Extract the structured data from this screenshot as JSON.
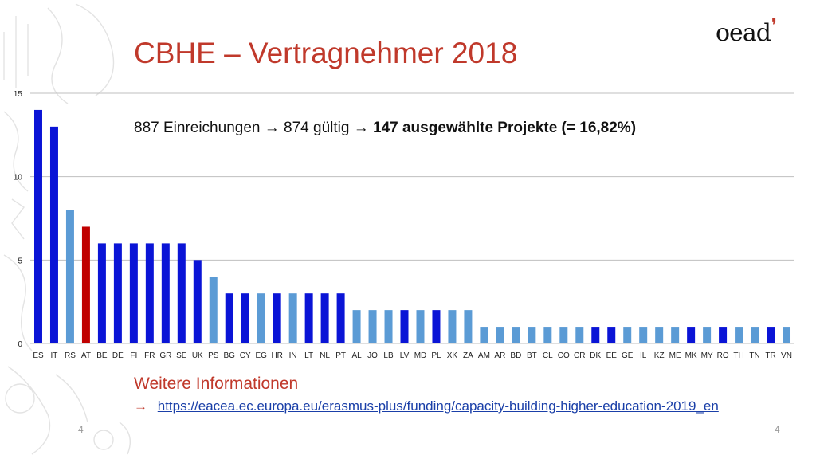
{
  "slide": {
    "title": "CBHE – Vertragnehmer 2018",
    "logo_text": "oead",
    "annotation_part1": "887 Einreichungen",
    "annotation_part2": "874 gültig",
    "annotation_bold": "147 ausgewählte Projekte (= 16,82%)",
    "more_info_title": "Weitere Informationen",
    "link_text": "https://eacea.ec.europa.eu/erasmus-plus/funding/capacity-building-higher-education-2019_en",
    "page_number_left": "4",
    "page_number_right": "4"
  },
  "colors": {
    "title": "#c0392b",
    "dark_blue": "#0a14d6",
    "light_blue": "#5b9bd5",
    "red": "#c00000",
    "gridline": "#bfbfbf"
  },
  "chart_data": {
    "type": "bar",
    "categories": [
      "ES",
      "IT",
      "RS",
      "AT",
      "BE",
      "DE",
      "FI",
      "FR",
      "GR",
      "SE",
      "UK",
      "PS",
      "BG",
      "CY",
      "EG",
      "HR",
      "IN",
      "LT",
      "NL",
      "PT",
      "AL",
      "JO",
      "LB",
      "LV",
      "MD",
      "PL",
      "XK",
      "ZA",
      "AM",
      "AR",
      "BD",
      "BT",
      "CL",
      "CO",
      "CR",
      "DK",
      "EE",
      "GE",
      "IL",
      "KZ",
      "ME",
      "MK",
      "MY",
      "RO",
      "TH",
      "TN",
      "TR",
      "VN"
    ],
    "values": [
      14,
      13,
      8,
      7,
      6,
      6,
      6,
      6,
      6,
      6,
      5,
      4,
      3,
      3,
      3,
      3,
      3,
      3,
      3,
      3,
      2,
      2,
      2,
      2,
      2,
      2,
      2,
      2,
      1,
      1,
      1,
      1,
      1,
      1,
      1,
      1,
      1,
      1,
      1,
      1,
      1,
      1,
      1,
      1,
      1,
      1,
      1,
      1
    ],
    "bar_colors": [
      "dark",
      "dark",
      "light",
      "red",
      "dark",
      "dark",
      "dark",
      "dark",
      "dark",
      "dark",
      "dark",
      "light",
      "dark",
      "dark",
      "light",
      "dark",
      "light",
      "dark",
      "dark",
      "dark",
      "light",
      "light",
      "light",
      "dark",
      "light",
      "dark",
      "light",
      "light",
      "light",
      "light",
      "light",
      "light",
      "light",
      "light",
      "light",
      "dark",
      "dark",
      "light",
      "light",
      "light",
      "light",
      "dark",
      "light",
      "dark",
      "light",
      "light",
      "dark",
      "light"
    ],
    "ylim": [
      0,
      15
    ],
    "yticks": [
      "0",
      "5",
      "10",
      "15"
    ],
    "grid": true,
    "title": "",
    "xlabel": "",
    "ylabel": ""
  }
}
